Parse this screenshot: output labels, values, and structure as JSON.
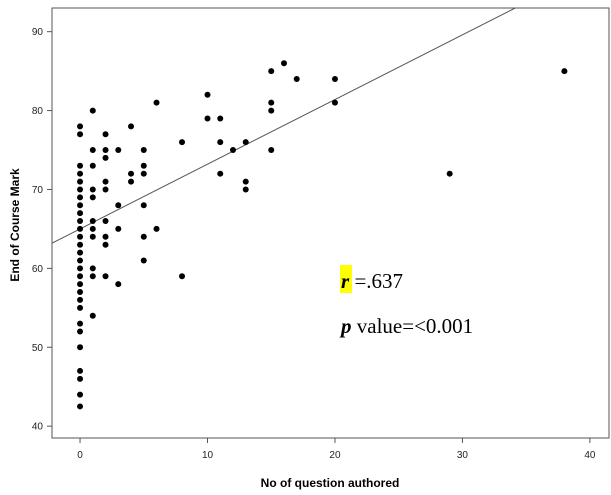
{
  "chart_data": {
    "type": "scatter",
    "xlabel": "No of question authored",
    "ylabel": "End of Course Mark",
    "xlim": [
      -2.2,
      41.5
    ],
    "ylim": [
      38.5,
      93
    ],
    "xticks": [
      0,
      10,
      20,
      30,
      40
    ],
    "yticks": [
      40,
      50,
      60,
      70,
      80,
      90
    ],
    "grid": false,
    "colors": {
      "points": "#000000",
      "fit_line": "#555555",
      "highlight": "#ffff00"
    },
    "fit_line": {
      "intercept": 65.0,
      "slope": 0.82
    },
    "annotations": {
      "r_symbol": "r",
      "r_value": " =.637",
      "p_symbol": "p",
      "p_value": " value=<0.001"
    },
    "points": [
      [
        0,
        78
      ],
      [
        0,
        77
      ],
      [
        0,
        73
      ],
      [
        0,
        72
      ],
      [
        0,
        71
      ],
      [
        0,
        70
      ],
      [
        0,
        69
      ],
      [
        0,
        68
      ],
      [
        0,
        67
      ],
      [
        0,
        66
      ],
      [
        0,
        65
      ],
      [
        0,
        64
      ],
      [
        0,
        63
      ],
      [
        0,
        62
      ],
      [
        0,
        61
      ],
      [
        0,
        60
      ],
      [
        0,
        59
      ],
      [
        0,
        58
      ],
      [
        0,
        57
      ],
      [
        0,
        56
      ],
      [
        0,
        55
      ],
      [
        0,
        53
      ],
      [
        0,
        52
      ],
      [
        0,
        50
      ],
      [
        0,
        47
      ],
      [
        0,
        46
      ],
      [
        0,
        44
      ],
      [
        0,
        42.5
      ],
      [
        1,
        80
      ],
      [
        1,
        75
      ],
      [
        1,
        73
      ],
      [
        1,
        70
      ],
      [
        1,
        69
      ],
      [
        1,
        66
      ],
      [
        1,
        65
      ],
      [
        1,
        64
      ],
      [
        1,
        60
      ],
      [
        1,
        59
      ],
      [
        1,
        54
      ],
      [
        2,
        77
      ],
      [
        2,
        75
      ],
      [
        2,
        74
      ],
      [
        2,
        71
      ],
      [
        2,
        70
      ],
      [
        2,
        66
      ],
      [
        2,
        64
      ],
      [
        2,
        63
      ],
      [
        2,
        59
      ],
      [
        3,
        75
      ],
      [
        3,
        68
      ],
      [
        3,
        65
      ],
      [
        3,
        58
      ],
      [
        4,
        78
      ],
      [
        4,
        72
      ],
      [
        4,
        71
      ],
      [
        5,
        75
      ],
      [
        5,
        73
      ],
      [
        5,
        72
      ],
      [
        5,
        68
      ],
      [
        5,
        64
      ],
      [
        5,
        61
      ],
      [
        6,
        81
      ],
      [
        6,
        65
      ],
      [
        8,
        76
      ],
      [
        8,
        59
      ],
      [
        10,
        82
      ],
      [
        10,
        79
      ],
      [
        11,
        79
      ],
      [
        11,
        76
      ],
      [
        11,
        72
      ],
      [
        12,
        75
      ],
      [
        13,
        76
      ],
      [
        13,
        71
      ],
      [
        13,
        70
      ],
      [
        15,
        85
      ],
      [
        15,
        81
      ],
      [
        15,
        80
      ],
      [
        15,
        75
      ],
      [
        16,
        86
      ],
      [
        17,
        84
      ],
      [
        20,
        84
      ],
      [
        20,
        81
      ],
      [
        29,
        72
      ],
      [
        38,
        85
      ]
    ]
  }
}
